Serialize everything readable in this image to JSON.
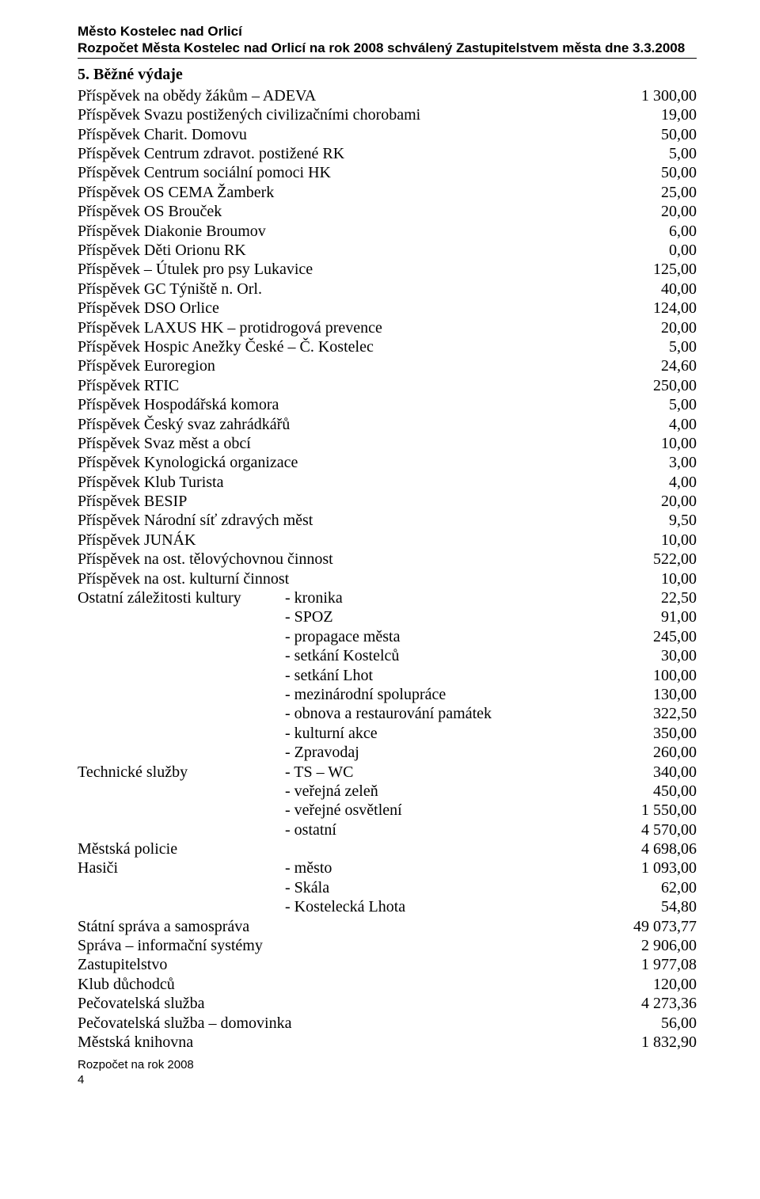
{
  "header": {
    "line1": "Město Kostelec nad Orlicí",
    "line2": "Rozpočet Města Kostelec nad Orlicí na rok 2008 schválený Zastupitelstvem města dne 3.3.2008"
  },
  "section_title": "5. Běžné výdaje",
  "rows2": [
    {
      "label": "Příspěvek na obědy žákům – ADEVA",
      "val": "1 300,00"
    },
    {
      "label": "Příspěvek Svazu postižených  civilizačními chorobami",
      "val": "19,00"
    },
    {
      "label": "Příspěvek Charit. Domovu",
      "val": "50,00"
    },
    {
      "label": "Příspěvek Centrum zdravot. postižené RK",
      "val": "5,00"
    },
    {
      "label": "Příspěvek Centrum sociální pomoci HK",
      "val": "50,00"
    },
    {
      "label": "Příspěvek OS CEMA Žamberk",
      "val": "25,00"
    },
    {
      "label": "Příspěvek OS Brouček",
      "val": "20,00"
    },
    {
      "label": "Příspěvek Diakonie Broumov",
      "val": "6,00"
    },
    {
      "label": "Příspěvek Děti Orionu RK",
      "val": "0,00"
    },
    {
      "label": "Příspěvek – Útulek pro psy Lukavice",
      "val": "125,00"
    },
    {
      "label": "Příspěvek GC Týniště n. Orl.",
      "val": "40,00"
    },
    {
      "label": "Příspěvek DSO Orlice",
      "val": "124,00"
    },
    {
      "label": "Příspěvek LAXUS HK – protidrogová prevence",
      "val": "20,00"
    },
    {
      "label": "Příspěvek Hospic Anežky České – Č. Kostelec",
      "val": "5,00"
    },
    {
      "label": "Příspěvek Euroregion",
      "val": "24,60"
    },
    {
      "label": "Příspěvek RTIC",
      "val": "250,00"
    },
    {
      "label": "Příspěvek Hospodářská komora",
      "val": "5,00"
    },
    {
      "label": "Příspěvek Český svaz zahrádkářů",
      "val": "4,00"
    },
    {
      "label": "Příspěvek Svaz měst a obcí",
      "val": "10,00"
    },
    {
      "label": "Příspěvek Kynologická organizace",
      "val": "3,00"
    },
    {
      "label": "Příspěvek Klub Turista",
      "val": "4,00"
    },
    {
      "label": "Příspěvek BESIP",
      "val": "20,00"
    },
    {
      "label": "Příspěvek Národní síť zdravých měst",
      "val": "9,50"
    },
    {
      "label": "Příspěvek JUNÁK",
      "val": "10,00"
    },
    {
      "label": "Příspěvek na ost. tělovýchovnou činnost",
      "val": "522,00"
    },
    {
      "label": "Příspěvek na ost. kulturní činnost",
      "val": "10,00"
    }
  ],
  "rows3": [
    {
      "c1": "Ostatní záležitosti kultury",
      "c2": "- kronika",
      "val": "22,50"
    },
    {
      "c1": "",
      "c2": "- SPOZ",
      "val": "91,00"
    },
    {
      "c1": "",
      "c2": "- propagace města",
      "val": "245,00"
    },
    {
      "c1": "",
      "c2": "- setkání Kostelců",
      "val": "30,00"
    },
    {
      "c1": "",
      "c2": "- setkání Lhot",
      "val": "100,00"
    },
    {
      "c1": "",
      "c2": "- mezinárodní spolupráce",
      "val": "130,00"
    },
    {
      "c1": "",
      "c2": "- obnova a restaurování památek",
      "val": "322,50"
    },
    {
      "c1": "",
      "c2": "- kulturní akce",
      "val": "350,00"
    },
    {
      "c1": "",
      "c2": "- Zpravodaj",
      "val": "260,00"
    },
    {
      "c1": "Technické služby",
      "c2": "- TS – WC",
      "val": "340,00"
    },
    {
      "c1": "",
      "c2": "- veřejná zeleň",
      "val": "450,00"
    },
    {
      "c1": "",
      "c2": "- veřejné osvětlení",
      "val": "1 550,00"
    },
    {
      "c1": "",
      "c2": "- ostatní",
      "val": "4 570,00"
    }
  ],
  "rows2b": [
    {
      "label": "Městská policie",
      "val": "4 698,06"
    }
  ],
  "rows3b": [
    {
      "c1": "Hasiči",
      "c2": "- město",
      "val": "1 093,00"
    },
    {
      "c1": "",
      "c2": "- Skála",
      "val": "62,00"
    },
    {
      "c1": "",
      "c2": "- Kostelecká Lhota",
      "val": "54,80"
    }
  ],
  "rows2c": [
    {
      "label": "Státní správa a samospráva",
      "val": "49 073,77"
    },
    {
      "label": "Správa – informační systémy",
      "val": "2 906,00"
    },
    {
      "label": "Zastupitelstvo",
      "val": "1 977,08"
    },
    {
      "label": "Klub důchodců",
      "val": "120,00"
    },
    {
      "label": "Pečovatelská služba",
      "val": "4 273,36"
    },
    {
      "label": "Pečovatelská služba – domovinka",
      "val": "56,00"
    },
    {
      "label": "Městská knihovna",
      "val": "1 832,90"
    }
  ],
  "footer": {
    "text": "Rozpočet  na rok 2008",
    "page": "4"
  }
}
